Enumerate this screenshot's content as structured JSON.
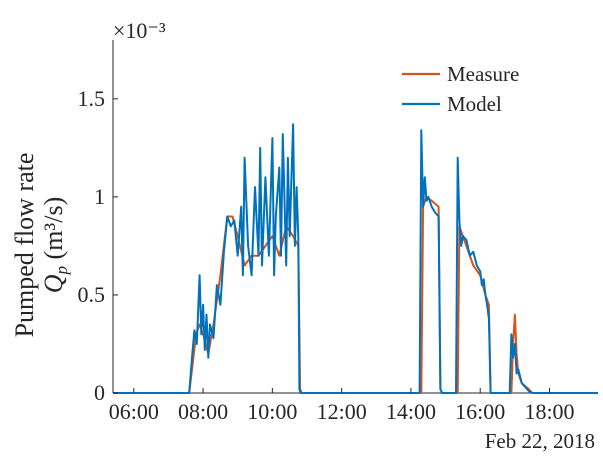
{
  "chart_data": {
    "type": "line",
    "title": "",
    "xlabel": "",
    "date_label": "Feb 22, 2018",
    "ylabel_line1": "Pumped flow rate",
    "ylabel_symbol": "Q",
    "ylabel_subscript": "p",
    "ylabel_unit": "(m³/s)",
    "y_exponent_label": "×10⁻³",
    "x_unit": "hours of day",
    "xlim": [
      5.4,
      19.4
    ],
    "ylim": [
      0,
      1.8
    ],
    "x_ticks": [
      6,
      8,
      10,
      12,
      14,
      16,
      18
    ],
    "x_tick_labels": [
      "06:00",
      "08:00",
      "10:00",
      "12:00",
      "14:00",
      "16:00",
      "18:00"
    ],
    "y_ticks": [
      0,
      0.5,
      1,
      1.5
    ],
    "y_tick_labels": [
      "0",
      "0.5",
      "1",
      "1.5"
    ],
    "grid": false,
    "legend_position": "top-right",
    "colors": {
      "measure": "#d95319",
      "model": "#0072bd"
    },
    "series": [
      {
        "name": "Measure",
        "color": "#d95319",
        "x": [
          5.4,
          7.6,
          7.7,
          7.8,
          7.9,
          8.0,
          8.15,
          8.3,
          8.5,
          8.7,
          8.85,
          9.0,
          9.2,
          9.4,
          9.6,
          9.8,
          10.0,
          10.2,
          10.4,
          10.6,
          10.75,
          10.8,
          10.85,
          14.3,
          14.35,
          14.45,
          14.6,
          14.8,
          14.85,
          14.9,
          15.35,
          15.4,
          15.6,
          15.8,
          16.0,
          16.15,
          16.25,
          16.3,
          16.9,
          16.95,
          17.0,
          17.05,
          17.1,
          17.2,
          17.4,
          17.5,
          19.4
        ],
        "y": [
          0,
          0,
          0.15,
          0.3,
          0.35,
          0.3,
          0.2,
          0.35,
          0.6,
          0.9,
          0.9,
          0.8,
          0.65,
          0.7,
          0.7,
          0.75,
          0.8,
          0.7,
          0.85,
          0.8,
          0.75,
          0.02,
          0,
          0,
          0.95,
          1.0,
          0.98,
          0.95,
          0.02,
          0,
          0,
          0.85,
          0.75,
          0.65,
          0.6,
          0.5,
          0.45,
          0,
          0,
          0.25,
          0.4,
          0.2,
          0.1,
          0.05,
          0.02,
          0,
          0
        ]
      },
      {
        "name": "Model",
        "color": "#0072bd",
        "x": [
          5.4,
          7.6,
          7.68,
          7.75,
          7.82,
          7.9,
          7.95,
          8.0,
          8.05,
          8.1,
          8.15,
          8.2,
          8.3,
          8.4,
          8.5,
          8.6,
          8.7,
          8.8,
          8.9,
          9.0,
          9.1,
          9.15,
          9.2,
          9.3,
          9.4,
          9.5,
          9.6,
          9.65,
          9.7,
          9.8,
          9.9,
          10.0,
          10.05,
          10.1,
          10.2,
          10.25,
          10.3,
          10.4,
          10.45,
          10.5,
          10.6,
          10.65,
          10.7,
          10.75,
          10.78,
          10.82,
          14.25,
          14.3,
          14.35,
          14.4,
          14.45,
          14.5,
          14.6,
          14.7,
          14.8,
          14.85,
          14.9,
          15.3,
          15.35,
          15.4,
          15.45,
          15.5,
          15.6,
          15.7,
          15.8,
          15.9,
          16.0,
          16.05,
          16.1,
          16.15,
          16.2,
          16.25,
          16.3,
          16.85,
          16.9,
          16.95,
          17.0,
          17.05,
          17.1,
          17.2,
          17.3,
          17.4,
          17.5,
          19.4
        ],
        "y": [
          0,
          0,
          0.18,
          0.32,
          0.25,
          0.6,
          0.3,
          0.45,
          0.22,
          0.4,
          0.18,
          0.35,
          0.28,
          0.55,
          0.45,
          0.72,
          0.9,
          0.85,
          0.88,
          0.7,
          0.95,
          0.6,
          1.2,
          0.75,
          0.6,
          1.05,
          0.7,
          1.25,
          0.65,
          1.1,
          0.7,
          1.3,
          0.6,
          0.9,
          1.15,
          0.7,
          1.32,
          0.65,
          1.2,
          0.8,
          1.37,
          0.75,
          1.05,
          0.8,
          0.02,
          0,
          0,
          1.34,
          0.95,
          1.1,
          0.98,
          1.0,
          0.95,
          0.92,
          0.9,
          0.02,
          0,
          0,
          1.2,
          0.88,
          0.75,
          0.8,
          0.78,
          0.7,
          0.72,
          0.65,
          0.62,
          0.55,
          0.58,
          0.5,
          0.45,
          0.38,
          0,
          0,
          0.3,
          0.18,
          0.25,
          0.1,
          0.12,
          0.05,
          0.03,
          0.01,
          0,
          0
        ]
      }
    ]
  }
}
